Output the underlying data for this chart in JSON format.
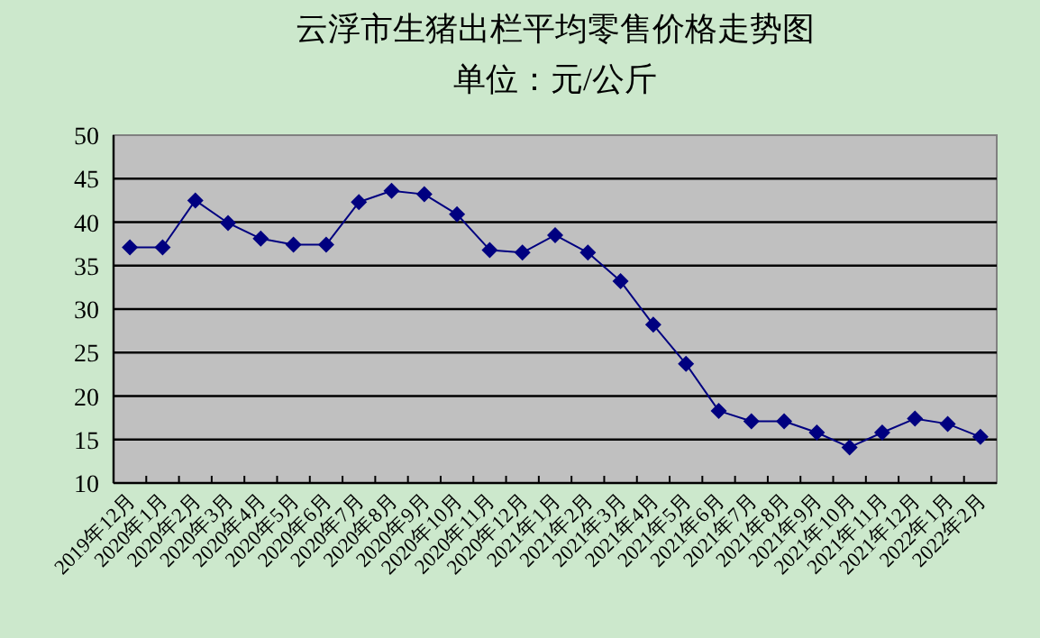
{
  "chart_data": {
    "type": "line",
    "title": "云浮市生猪出栏平均零售价格走势图",
    "subtitle": "单位：元/公斤",
    "categories": [
      "2019年12月",
      "2020年1月",
      "2020年2月",
      "2020年3月",
      "2020年4月",
      "2020年5月",
      "2020年6月",
      "2020年7月",
      "2020年8月",
      "2020年9月",
      "2020年10月",
      "2020年11月",
      "2020年12月",
      "2021年1月",
      "2021年2月",
      "2021年3月",
      "2021年4月",
      "2021年5月",
      "2021年6月",
      "2021年7月",
      "2021年8月",
      "2021年9月",
      "2021年10月",
      "2021年11月",
      "2021年12月",
      "2022年1月",
      "2022年2月"
    ],
    "values": [
      37.1,
      37.1,
      42.5,
      39.9,
      38.1,
      37.4,
      37.4,
      42.3,
      43.6,
      43.2,
      40.9,
      36.8,
      36.5,
      38.5,
      36.5,
      33.2,
      28.2,
      23.7,
      18.3,
      17.1,
      17.1,
      15.8,
      14.1,
      15.8,
      17.4,
      16.8,
      15.3
    ],
    "color": "#000080",
    "ylim": [
      10,
      50
    ],
    "yticks": [
      10,
      15,
      20,
      25,
      30,
      35,
      40,
      45,
      50
    ],
    "grid": "y",
    "marker": "diamond",
    "line_style": "solid"
  }
}
